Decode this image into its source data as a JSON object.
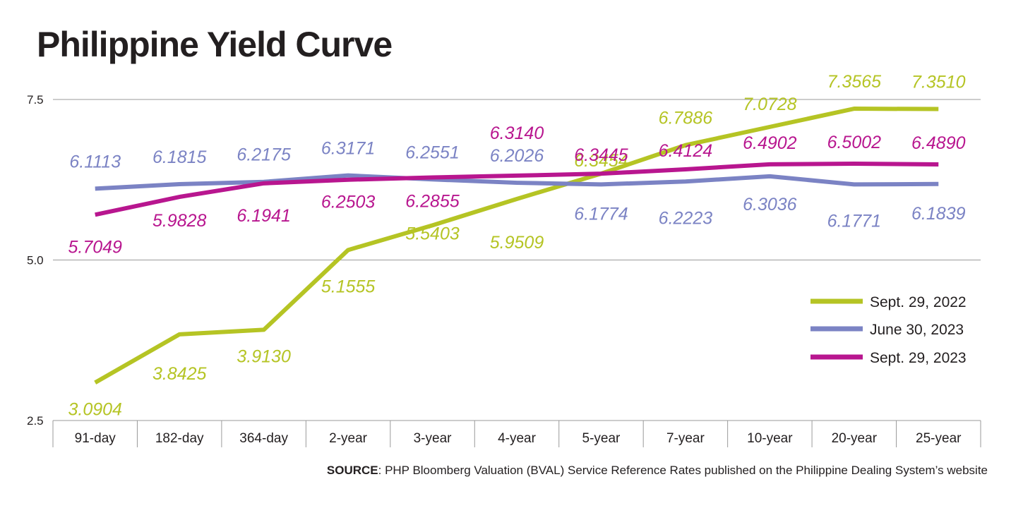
{
  "title": "Philippine Yield Curve",
  "source": {
    "prefix": "SOURCE",
    "text": ": PHP Bloomberg Valuation (BVAL) Service Reference Rates published on the Philippine Dealing System’s website"
  },
  "chart_data": {
    "type": "line",
    "categories": [
      "91-day",
      "182-day",
      "364-day",
      "2-year",
      "3-year",
      "4-year",
      "5-year",
      "7-year",
      "10-year",
      "20-year",
      "25-year"
    ],
    "ylim": [
      2.5,
      7.5
    ],
    "yticks": [
      "2.5",
      "5.0",
      "7.5"
    ],
    "grid": true,
    "legend_position": "right",
    "series": [
      {
        "name": "Sept. 29, 2022",
        "color": "#b5c424",
        "values": [
          3.0904,
          3.8425,
          3.913,
          5.1555,
          5.5403,
          5.9509,
          6.3454,
          6.7886,
          7.0728,
          7.3565,
          7.351
        ],
        "labels": [
          "3.0904",
          "3.8425",
          "3.9130",
          "5.1555",
          "5.5403",
          "5.9509",
          "6.3454",
          "6.7886",
          "7.0728",
          "7.3565",
          "7.3510"
        ]
      },
      {
        "name": "June 30, 2023",
        "color": "#7b83c4",
        "values": [
          6.1113,
          6.1815,
          6.2175,
          6.3171,
          6.2551,
          6.2026,
          6.1774,
          6.2223,
          6.3036,
          6.1771,
          6.1839
        ],
        "labels": [
          "6.1113",
          "6.1815",
          "6.2175",
          "6.3171",
          "6.2551",
          "6.2026",
          "6.1774",
          "6.2223",
          "6.3036",
          "6.1771",
          "6.1839"
        ]
      },
      {
        "name": "Sept. 29, 2023",
        "color": "#b8168f",
        "values": [
          5.7049,
          5.9828,
          6.1941,
          6.2503,
          6.2855,
          6.314,
          6.3445,
          6.4124,
          6.4902,
          6.5002,
          6.489
        ],
        "labels": [
          "5.7049",
          "5.9828",
          "6.1941",
          "6.2503",
          "6.2855",
          "6.3140",
          "6.3445",
          "6.4124",
          "6.4902",
          "6.5002",
          "6.4890"
        ]
      }
    ]
  }
}
